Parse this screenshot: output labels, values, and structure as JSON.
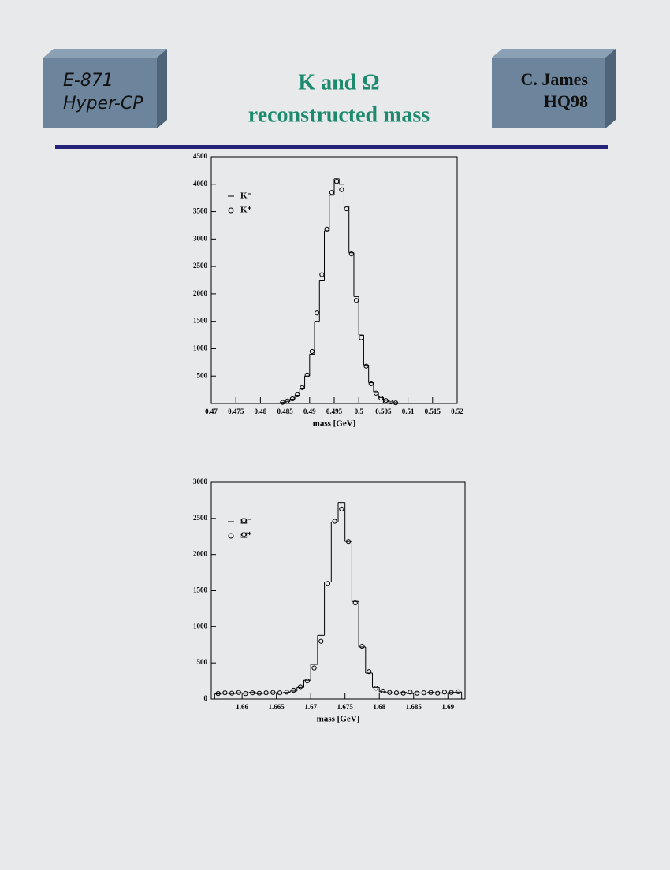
{
  "header": {
    "left_box": [
      "E-871",
      "Hyper-CP"
    ],
    "title": [
      "K and Ω",
      "reconstructed mass"
    ],
    "right_box": [
      "C. James",
      "HQ98"
    ]
  },
  "chart_data": [
    {
      "type": "histogram",
      "x_label": "mass [GeV]",
      "bins": [
        0.484,
        0.485,
        0.486,
        0.487,
        0.488,
        0.489,
        0.49,
        0.491,
        0.492,
        0.493,
        0.494,
        0.495,
        0.496,
        0.497,
        0.498,
        0.499,
        0.5,
        0.501,
        0.502,
        0.503,
        0.504,
        0.505,
        0.506,
        0.507,
        0.508
      ],
      "series": [
        {
          "name": "K⁻",
          "color": "#000000",
          "style": "step",
          "values": [
            20,
            40,
            80,
            150,
            280,
            500,
            900,
            1500,
            2250,
            3150,
            3800,
            4100,
            4000,
            3600,
            2750,
            1950,
            1250,
            700,
            380,
            200,
            110,
            60,
            30,
            15
          ]
        },
        {
          "name": "K⁺",
          "color": "#000000",
          "style": "points",
          "values": [
            20,
            45,
            85,
            160,
            290,
            520,
            950,
            1650,
            2350,
            3180,
            3850,
            4050,
            3900,
            3550,
            2730,
            1880,
            1200,
            680,
            360,
            190,
            100,
            55,
            28,
            12
          ]
        }
      ],
      "xlim": [
        0.47,
        0.52
      ],
      "xticks": [
        0.47,
        0.475,
        0.48,
        0.485,
        0.49,
        0.495,
        0.5,
        0.505,
        0.51,
        0.515,
        0.52
      ],
      "ylim": [
        0,
        4500
      ],
      "yticks": [
        500,
        1000,
        1500,
        2000,
        2500,
        3000,
        3500,
        4000,
        4500
      ]
    },
    {
      "type": "histogram",
      "x_label": "mass [GeV]",
      "bins": [
        1.656,
        1.657,
        1.658,
        1.659,
        1.66,
        1.661,
        1.662,
        1.663,
        1.664,
        1.665,
        1.666,
        1.667,
        1.668,
        1.669,
        1.67,
        1.671,
        1.672,
        1.673,
        1.674,
        1.675,
        1.676,
        1.677,
        1.678,
        1.679,
        1.68,
        1.681,
        1.682,
        1.683,
        1.684,
        1.685,
        1.686,
        1.687,
        1.688,
        1.689,
        1.69,
        1.691,
        1.692
      ],
      "series": [
        {
          "name": "Ω⁻",
          "color": "#000000",
          "style": "step",
          "values": [
            70,
            80,
            75,
            85,
            80,
            90,
            75,
            80,
            85,
            80,
            90,
            110,
            160,
            260,
            480,
            880,
            1620,
            2450,
            2720,
            2180,
            1350,
            720,
            360,
            160,
            100,
            85,
            80,
            90,
            75,
            85,
            80,
            90,
            85,
            80,
            90,
            95
          ]
        },
        {
          "name": "Ω̄⁺",
          "color": "#000000",
          "style": "points",
          "values": [
            75,
            85,
            80,
            90,
            75,
            85,
            80,
            85,
            90,
            85,
            95,
            120,
            170,
            250,
            430,
            800,
            1600,
            2460,
            2630,
            2180,
            1330,
            730,
            380,
            150,
            110,
            90,
            85,
            80,
            95,
            80,
            85,
            90,
            80,
            95,
            90,
            100
          ]
        }
      ],
      "xlim": [
        1.6555,
        1.6925
      ],
      "xticks": [
        1.66,
        1.665,
        1.67,
        1.675,
        1.68,
        1.685,
        1.69
      ],
      "ylim": [
        0,
        3000
      ],
      "yticks": [
        0,
        500,
        1000,
        1500,
        2000,
        2500,
        3000
      ]
    }
  ]
}
